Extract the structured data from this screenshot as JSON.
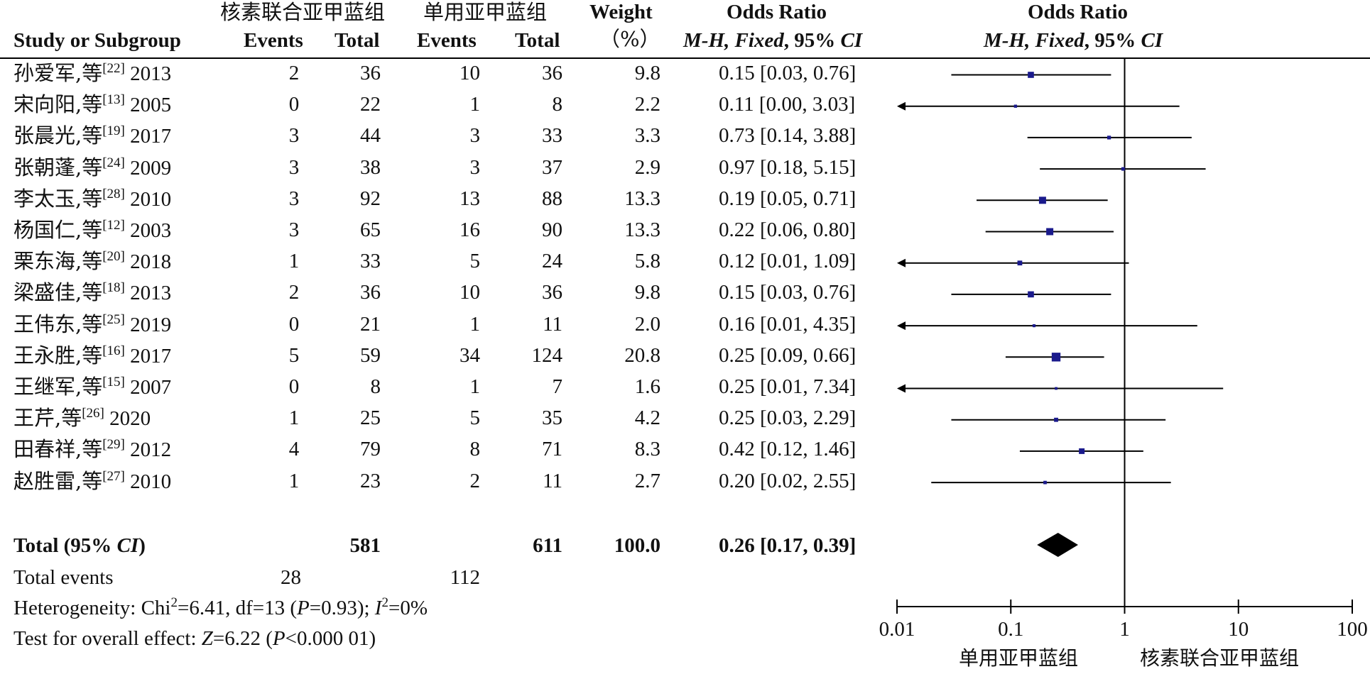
{
  "chart_data": {
    "type": "forest",
    "header": {
      "group1": "核素联合亚甲蓝组",
      "group2": "单用亚甲蓝组",
      "study": "Study or Subgroup",
      "events": "Events",
      "total": "Total",
      "weight1": "Weight",
      "weight2": "（%）",
      "or_title": "Odds Ratio",
      "or_method_a": "M-H, Fixed",
      "or_method_b": ", 95% ",
      "or_method_c": "CI"
    },
    "studies": [
      {
        "name": "孙爱军,等",
        "ref": "[22]",
        "year": "2013",
        "e1": "2",
        "t1": "36",
        "e2": "10",
        "t2": "36",
        "weight": "9.8",
        "ci": "0.15 [0.03, 0.76]",
        "or": 0.15,
        "lo": 0.03,
        "hi": 0.76,
        "w": 9.8
      },
      {
        "name": "宋向阳,等",
        "ref": "[13]",
        "year": "2005",
        "e1": "0",
        "t1": "22",
        "e2": "1",
        "t2": "8",
        "weight": "2.2",
        "ci": "0.11 [0.00, 3.03]",
        "or": 0.11,
        "lo": 0.0,
        "hi": 3.03,
        "w": 2.2
      },
      {
        "name": "张晨光,等",
        "ref": "[19]",
        "year": "2017",
        "e1": "3",
        "t1": "44",
        "e2": "3",
        "t2": "33",
        "weight": "3.3",
        "ci": "0.73 [0.14, 3.88]",
        "or": 0.73,
        "lo": 0.14,
        "hi": 3.88,
        "w": 3.3
      },
      {
        "name": "张朝蓬,等",
        "ref": "[24]",
        "year": "2009",
        "e1": "3",
        "t1": "38",
        "e2": "3",
        "t2": "37",
        "weight": "2.9",
        "ci": "0.97 [0.18, 5.15]",
        "or": 0.97,
        "lo": 0.18,
        "hi": 5.15,
        "w": 2.9
      },
      {
        "name": "李太玉,等",
        "ref": "[28]",
        "year": "2010",
        "e1": "3",
        "t1": "92",
        "e2": "13",
        "t2": "88",
        "weight": "13.3",
        "ci": "0.19 [0.05, 0.71]",
        "or": 0.19,
        "lo": 0.05,
        "hi": 0.71,
        "w": 13.3
      },
      {
        "name": "杨国仁,等",
        "ref": "[12]",
        "year": "2003",
        "e1": "3",
        "t1": "65",
        "e2": "16",
        "t2": "90",
        "weight": "13.3",
        "ci": "0.22 [0.06, 0.80]",
        "or": 0.22,
        "lo": 0.06,
        "hi": 0.8,
        "w": 13.3
      },
      {
        "name": "栗东海,等",
        "ref": "[20]",
        "year": "2018",
        "e1": "1",
        "t1": "33",
        "e2": "5",
        "t2": "24",
        "weight": "5.8",
        "ci": "0.12 [0.01, 1.09]",
        "or": 0.12,
        "lo": 0.01,
        "hi": 1.09,
        "w": 5.8
      },
      {
        "name": "梁盛佳,等",
        "ref": "[18]",
        "year": "2013",
        "e1": "2",
        "t1": "36",
        "e2": "10",
        "t2": "36",
        "weight": "9.8",
        "ci": "0.15 [0.03, 0.76]",
        "or": 0.15,
        "lo": 0.03,
        "hi": 0.76,
        "w": 9.8
      },
      {
        "name": "王伟东,等",
        "ref": "[25]",
        "year": "2019",
        "e1": "0",
        "t1": "21",
        "e2": "1",
        "t2": "11",
        "weight": "2.0",
        "ci": "0.16 [0.01, 4.35]",
        "or": 0.16,
        "lo": 0.01,
        "hi": 4.35,
        "w": 2.0
      },
      {
        "name": "王永胜,等",
        "ref": "[16]",
        "year": "2017",
        "e1": "5",
        "t1": "59",
        "e2": "34",
        "t2": "124",
        "weight": "20.8",
        "ci": "0.25 [0.09, 0.66]",
        "or": 0.25,
        "lo": 0.09,
        "hi": 0.66,
        "w": 20.8
      },
      {
        "name": "王继军,等",
        "ref": "[15]",
        "year": "2007",
        "e1": "0",
        "t1": "8",
        "e2": "1",
        "t2": "7",
        "weight": "1.6",
        "ci": "0.25 [0.01, 7.34]",
        "or": 0.25,
        "lo": 0.01,
        "hi": 7.34,
        "w": 1.6
      },
      {
        "name": "王芹,等",
        "ref": "[26]",
        "year": "2020",
        "e1": "1",
        "t1": "25",
        "e2": "5",
        "t2": "35",
        "weight": "4.2",
        "ci": "0.25 [0.03, 2.29]",
        "or": 0.25,
        "lo": 0.03,
        "hi": 2.29,
        "w": 4.2
      },
      {
        "name": "田春祥,等",
        "ref": "[29]",
        "year": "2012",
        "e1": "4",
        "t1": "79",
        "e2": "8",
        "t2": "71",
        "weight": "8.3",
        "ci": "0.42 [0.12, 1.46]",
        "or": 0.42,
        "lo": 0.12,
        "hi": 1.46,
        "w": 8.3
      },
      {
        "name": "赵胜雷,等",
        "ref": "[27]",
        "year": "2010",
        "e1": "1",
        "t1": "23",
        "e2": "2",
        "t2": "11",
        "weight": "2.7",
        "ci": "0.20 [0.02, 2.55]",
        "or": 0.2,
        "lo": 0.02,
        "hi": 2.55,
        "w": 2.7
      }
    ],
    "total": {
      "label_a": "Total (95% ",
      "label_b": "CI",
      "label_c": ")",
      "t1": "581",
      "t2": "611",
      "weight": "100.0",
      "ci": "0.26 [0.17, 0.39]",
      "or": 0.26,
      "lo": 0.17,
      "hi": 0.39
    },
    "total_events": {
      "label": "Total events",
      "e1": "28",
      "e2": "112"
    },
    "heterogeneity": {
      "a": "Heterogeneity: Chi",
      "sup2": "2",
      "b": "=6.41, df=13 (",
      "p": "P",
      "c": "=0.93); ",
      "i": "I",
      "sup2b": "2",
      "d": "=0%"
    },
    "overall": {
      "a": "Test for overall effect: ",
      "z": "Z",
      "b": "=6.22 (",
      "p": "P",
      "c": "<0.000 01)"
    },
    "axis": {
      "scale": "log",
      "range": [
        0.01,
        100
      ],
      "ticks": [
        0.01,
        0.1,
        1,
        10,
        100
      ],
      "tick_labels": [
        "0.01",
        "0.1",
        "1",
        "10",
        "100"
      ],
      "reference": 1,
      "favors_left": "单用亚甲蓝组",
      "favors_right": "核素联合亚甲蓝组"
    },
    "colors": {
      "marker": "#1a1a8c",
      "line": "#000000",
      "diamond": "#000000"
    }
  }
}
